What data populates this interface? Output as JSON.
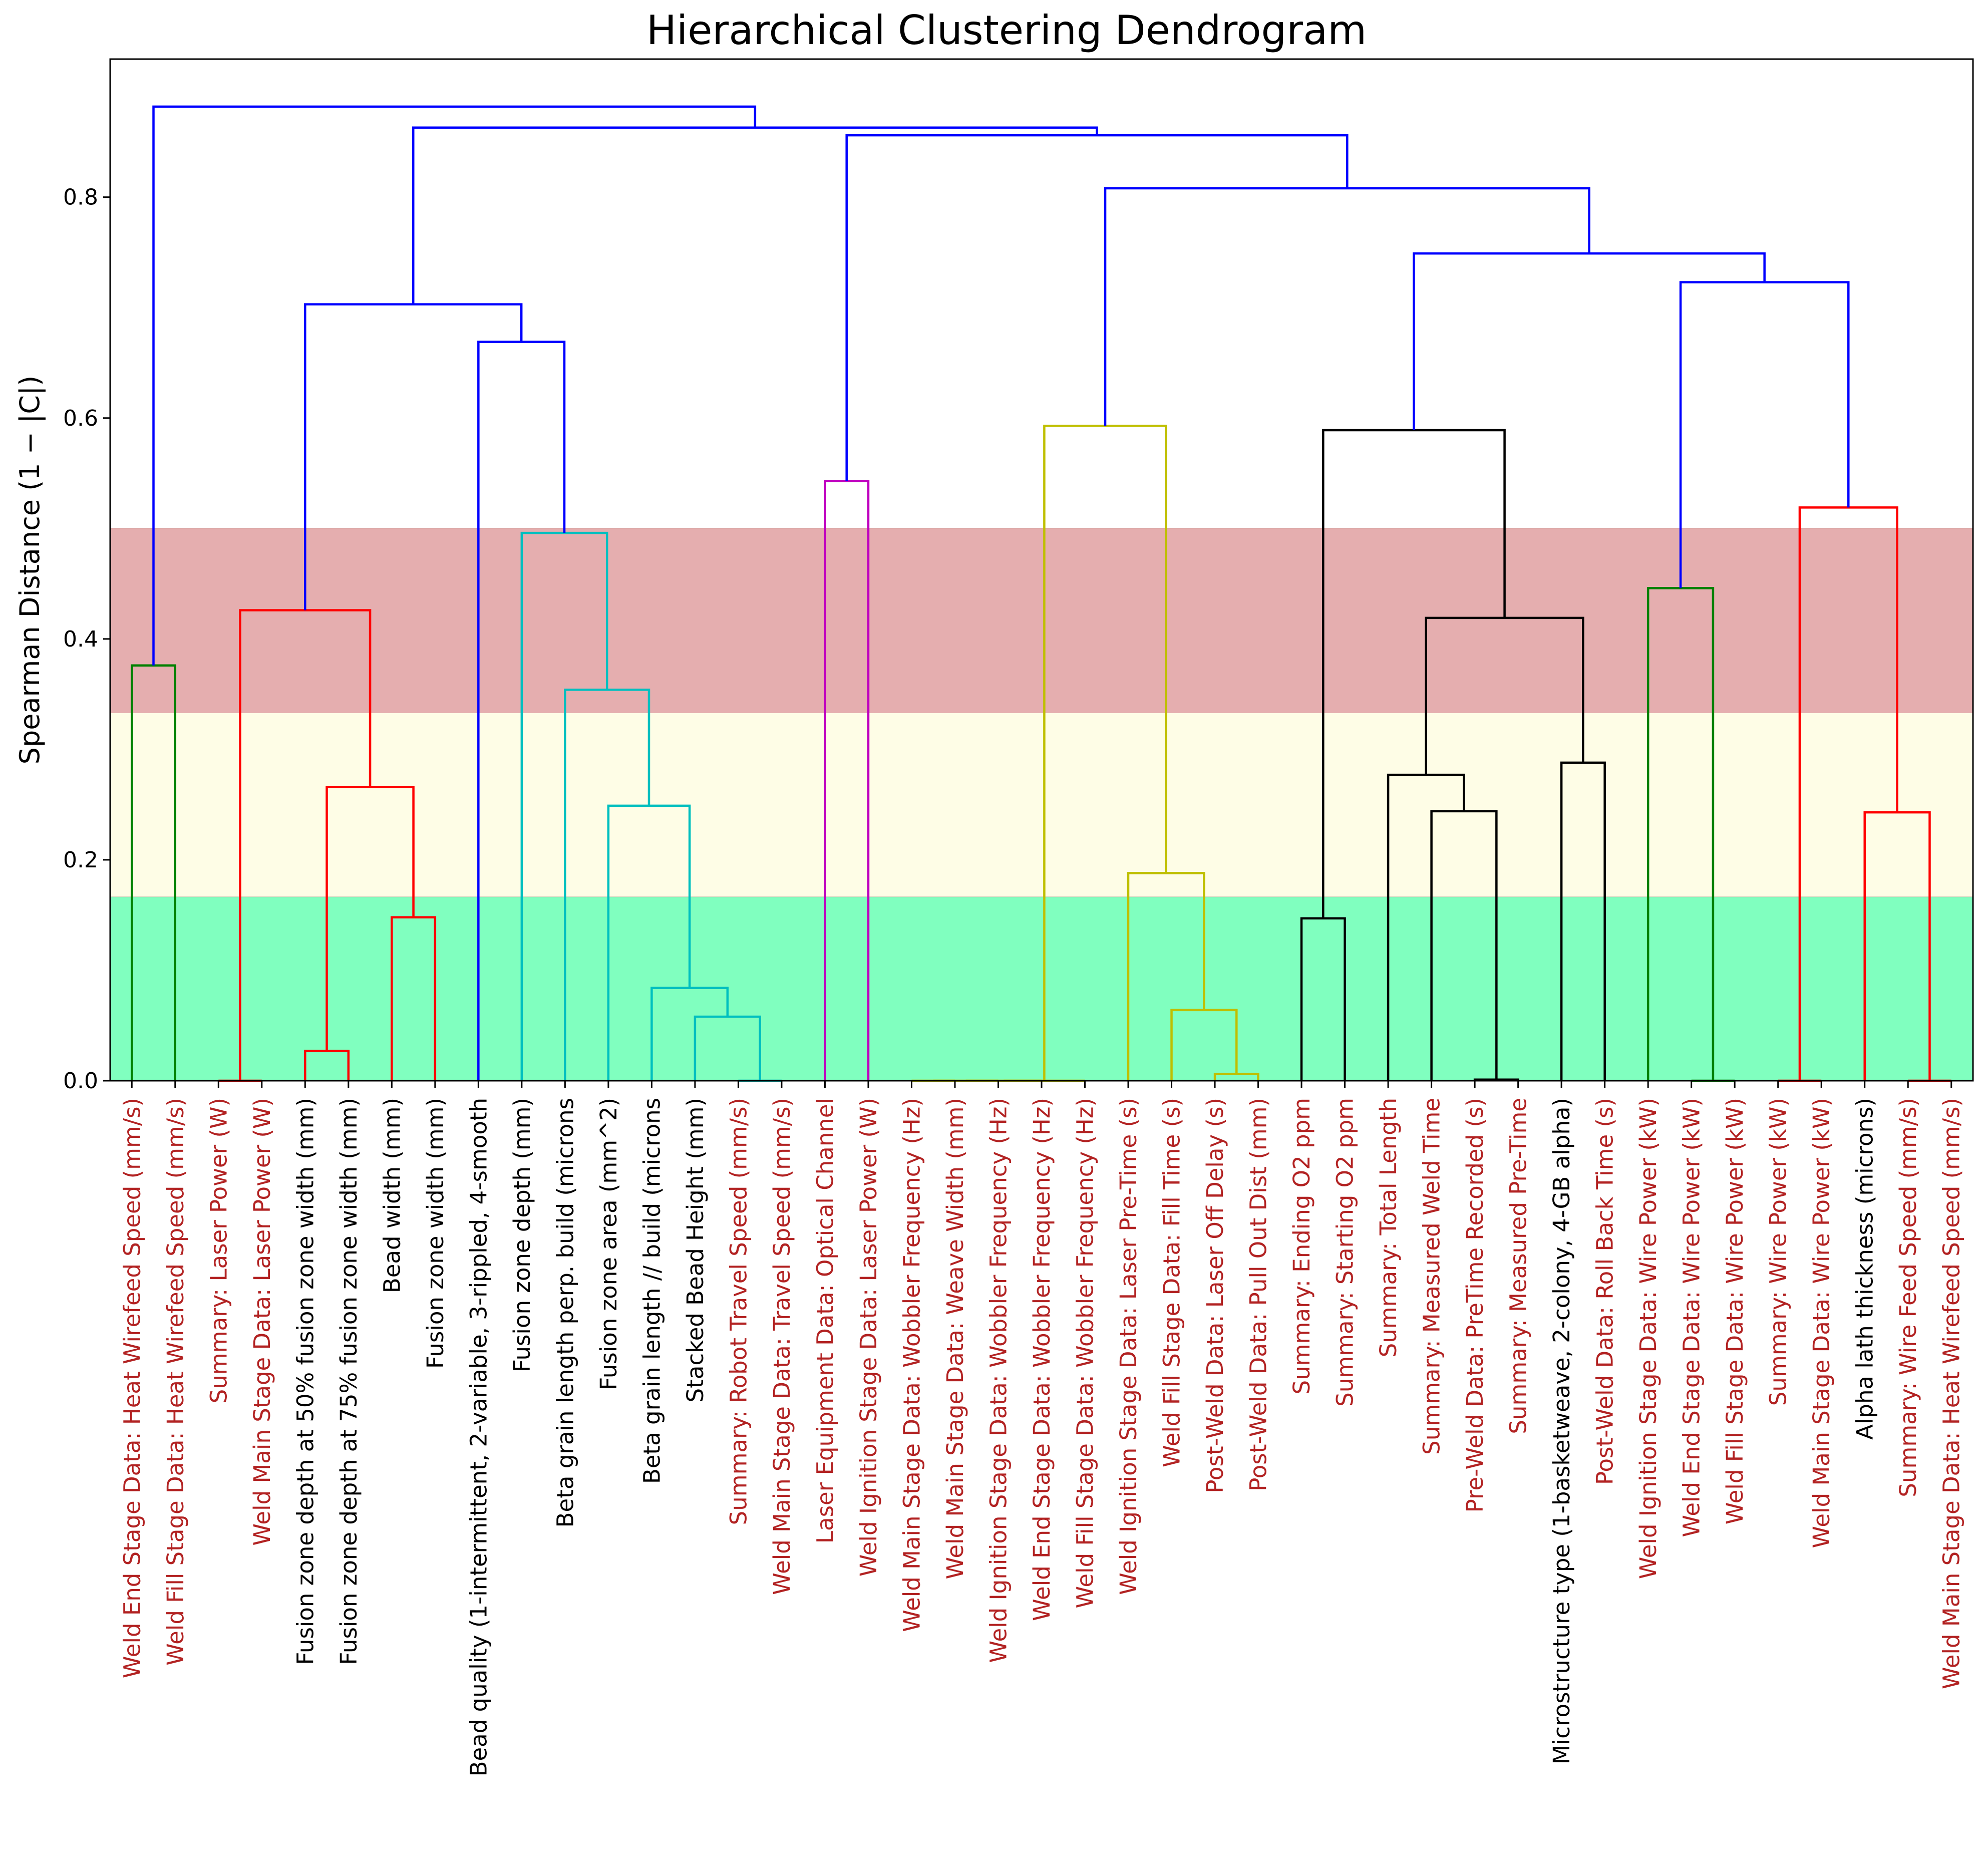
{
  "chart_data": {
    "type": "dendrogram",
    "title": "Hierarchical Clustering Dendrogram",
    "ylabel": "Spearman Distance (1 − |C|)",
    "ylim": [
      0,
      0.925
    ],
    "yticks": [
      0.0,
      0.2,
      0.4,
      0.6,
      0.8
    ],
    "ytick_labels": [
      "0.0",
      "0.2",
      "0.4",
      "0.6",
      "0.8"
    ],
    "grid": false,
    "bands": [
      {
        "from": 0.0,
        "to": 0.1667,
        "color": "#80ffbf"
      },
      {
        "from": 0.1667,
        "to": 0.3333,
        "color": "#fefde6"
      },
      {
        "from": 0.3333,
        "to": 0.5,
        "color": "#e5aeaf"
      }
    ],
    "label_colors": {
      "red": "#b22222",
      "black": "#000000"
    },
    "leaves": [
      {
        "label": "Weld End Stage Data: Heat Wirefeed Speed (mm/s)",
        "color": "red"
      },
      {
        "label": "Weld Fill Stage Data: Heat Wirefeed Speed (mm/s)",
        "color": "red"
      },
      {
        "label": "Summary: Laser Power (W)",
        "color": "red"
      },
      {
        "label": "Weld Main Stage Data: Laser Power (W)",
        "color": "red"
      },
      {
        "label": "Fusion zone depth at 50% fusion zone width (mm)",
        "color": "black"
      },
      {
        "label": "Fusion zone depth at 75% fusion zone width (mm)",
        "color": "black"
      },
      {
        "label": "Bead width (mm)",
        "color": "black"
      },
      {
        "label": "Fusion zone width (mm)",
        "color": "black"
      },
      {
        "label": "Bead quality (1-intermittent, 2-variable, 3-rippled, 4-smooth",
        "color": "black"
      },
      {
        "label": "Fusion zone depth (mm)",
        "color": "black"
      },
      {
        "label": "Beta grain length perp. build (microns",
        "color": "black"
      },
      {
        "label": "Fusion zone area (mm^2)",
        "color": "black"
      },
      {
        "label": "Beta grain length // build (microns",
        "color": "black"
      },
      {
        "label": "Stacked Bead Height (mm)",
        "color": "black"
      },
      {
        "label": "Summary: Robot Travel Speed (mm/s)",
        "color": "red"
      },
      {
        "label": "Weld Main Stage Data: Travel Speed (mm/s)",
        "color": "red"
      },
      {
        "label": "Laser Equipment Data: Optical Channel",
        "color": "red"
      },
      {
        "label": "Weld Ignition Stage Data: Laser Power (W)",
        "color": "red"
      },
      {
        "label": "Weld Main Stage Data: Wobbler Frequency (Hz)",
        "color": "red"
      },
      {
        "label": "Weld Main Stage Data: Weave Width (mm)",
        "color": "red"
      },
      {
        "label": "Weld Ignition Stage Data: Wobbler Frequency (Hz)",
        "color": "red"
      },
      {
        "label": "Weld End Stage Data: Wobbler Frequency (Hz)",
        "color": "red"
      },
      {
        "label": "Weld Fill Stage Data: Wobbler Frequency (Hz)",
        "color": "red"
      },
      {
        "label": "Weld Ignition Stage Data: Laser Pre-Time (s)",
        "color": "red"
      },
      {
        "label": "Weld Fill Stage Data: Fill Time (s)",
        "color": "red"
      },
      {
        "label": "Post-Weld Data: Laser Off Delay (s)",
        "color": "red"
      },
      {
        "label": "Post-Weld Data: Pull Out Dist (mm)",
        "color": "red"
      },
      {
        "label": "Summary: Ending O2 ppm",
        "color": "red"
      },
      {
        "label": "Summary: Starting O2 ppm",
        "color": "red"
      },
      {
        "label": "Summary: Total Length",
        "color": "red"
      },
      {
        "label": "Summary: Measured Weld Time",
        "color": "red"
      },
      {
        "label": "Pre-Weld Data: PreTime Recorded (s)",
        "color": "red"
      },
      {
        "label": "Summary: Measured Pre-Time",
        "color": "red"
      },
      {
        "label": "Microstructure type (1-basketweave, 2-colony, 4-GB alpha)",
        "color": "black"
      },
      {
        "label": "Post-Weld Data: Roll Back Time (s)",
        "color": "red"
      },
      {
        "label": "Weld Ignition Stage Data: Wire Power (kW)",
        "color": "red"
      },
      {
        "label": "Weld End Stage Data: Wire Power (kW)",
        "color": "red"
      },
      {
        "label": "Weld Fill Stage Data: Wire Power (kW)",
        "color": "red"
      },
      {
        "label": "Summary: Wire Power (kW)",
        "color": "red"
      },
      {
        "label": "Weld Main Stage Data: Wire Power (kW)",
        "color": "red"
      },
      {
        "label": "Alpha lath thickness (microns)",
        "color": "black"
      },
      {
        "label": "Summary: Wire Feed Speed (mm/s)",
        "color": "red"
      },
      {
        "label": "Weld Main Stage Data: Heat Wirefeed Speed (mm/s)",
        "color": "red"
      }
    ],
    "link_colors": {
      "blue": "#0000ff",
      "green": "#008000",
      "red": "#ff0000",
      "cyan": "#00bfbf",
      "magenta": "#bf00bf",
      "yellow": "#bfbf00",
      "black": "#000000"
    },
    "links": [
      {
        "xl": 0,
        "xr": 1,
        "yl": 0,
        "yr": 0,
        "h": 0.376,
        "color": "green"
      },
      {
        "xl": 2,
        "xr": 3,
        "yl": 0,
        "yr": 0,
        "h": 0.0,
        "color": "red"
      },
      {
        "xl": 4,
        "xr": 5,
        "yl": 0,
        "yr": 0,
        "h": 0.027,
        "color": "red"
      },
      {
        "xl": 6,
        "xr": 7,
        "yl": 0,
        "yr": 0,
        "h": 0.148,
        "color": "red"
      },
      {
        "xl": 4.5,
        "xr": 6.5,
        "yl": 0.027,
        "yr": 0.148,
        "h": 0.266,
        "color": "red"
      },
      {
        "xl": 2.5,
        "xr": 5.5,
        "yl": 0.0,
        "yr": 0.266,
        "h": 0.426,
        "color": "red"
      },
      {
        "xl": 14,
        "xr": 15,
        "yl": 0,
        "yr": 0,
        "h": 0.0,
        "color": "cyan"
      },
      {
        "xl": 13,
        "xr": 14.5,
        "yl": 0,
        "yr": 0.0,
        "h": 0.058,
        "color": "cyan"
      },
      {
        "xl": 12,
        "xr": 13.75,
        "yl": 0,
        "yr": 0.058,
        "h": 0.084,
        "color": "cyan"
      },
      {
        "xl": 11,
        "xr": 12.875,
        "yl": 0,
        "yr": 0.084,
        "h": 0.249,
        "color": "cyan"
      },
      {
        "xl": 10,
        "xr": 11.9375,
        "yl": 0,
        "yr": 0.249,
        "h": 0.354,
        "color": "cyan"
      },
      {
        "xl": 9,
        "xr": 10.96875,
        "yl": 0,
        "yr": 0.354,
        "h": 0.496,
        "color": "cyan"
      },
      {
        "xl": 8,
        "xr": 9.984375,
        "yl": 0,
        "yr": 0.496,
        "h": 0.669,
        "color": "blue"
      },
      {
        "xl": 4.0,
        "xr": 8.9921875,
        "yl": 0.426,
        "yr": 0.669,
        "h": 0.703,
        "color": "blue"
      },
      {
        "xl": 16,
        "xr": 17,
        "yl": 0,
        "yr": 0,
        "h": 0.543,
        "color": "magenta"
      },
      {
        "xl": 18,
        "xr": 19,
        "yl": 0,
        "yr": 0,
        "h": 0.0,
        "color": "yellow"
      },
      {
        "xl": 18.5,
        "xr": 20,
        "yl": 0.0,
        "yr": 0,
        "h": 0.0,
        "color": "yellow"
      },
      {
        "xl": 19.25,
        "xr": 21,
        "yl": 0.0,
        "yr": 0,
        "h": 0.0,
        "color": "yellow"
      },
      {
        "xl": 20.125,
        "xr": 22,
        "yl": 0.0,
        "yr": 0,
        "h": 0.0,
        "color": "yellow"
      },
      {
        "xl": 25,
        "xr": 26,
        "yl": 0,
        "yr": 0,
        "h": 0.006,
        "color": "yellow"
      },
      {
        "xl": 24,
        "xr": 25.5,
        "yl": 0,
        "yr": 0.006,
        "h": 0.064,
        "color": "yellow"
      },
      {
        "xl": 23,
        "xr": 24.75,
        "yl": 0,
        "yr": 0.064,
        "h": 0.188,
        "color": "yellow"
      },
      {
        "xl": 21.0625,
        "xr": 23.875,
        "yl": 0.0,
        "yr": 0.188,
        "h": 0.593,
        "color": "yellow"
      },
      {
        "xl": 27,
        "xr": 28,
        "yl": 0,
        "yr": 0,
        "h": 0.147,
        "color": "black"
      },
      {
        "xl": 31,
        "xr": 32,
        "yl": 0,
        "yr": 0,
        "h": 0.001,
        "color": "black"
      },
      {
        "xl": 30,
        "xr": 31.5,
        "yl": 0,
        "yr": 0.001,
        "h": 0.244,
        "color": "black"
      },
      {
        "xl": 29,
        "xr": 30.75,
        "yl": 0,
        "yr": 0.244,
        "h": 0.277,
        "color": "black"
      },
      {
        "xl": 33,
        "xr": 34,
        "yl": 0,
        "yr": 0,
        "h": 0.288,
        "color": "black"
      },
      {
        "xl": 29.875,
        "xr": 33.5,
        "yl": 0.277,
        "yr": 0.288,
        "h": 0.419,
        "color": "black"
      },
      {
        "xl": 27.5,
        "xr": 31.6875,
        "yl": 0.147,
        "yr": 0.419,
        "h": 0.589,
        "color": "black"
      },
      {
        "xl": 36,
        "xr": 37,
        "yl": 0,
        "yr": 0,
        "h": 0.0,
        "color": "green"
      },
      {
        "xl": 35,
        "xr": 36.5,
        "yl": 0,
        "yr": 0.0,
        "h": 0.446,
        "color": "green"
      },
      {
        "xl": 38,
        "xr": 39,
        "yl": 0,
        "yr": 0,
        "h": 0.0,
        "color": "red"
      },
      {
        "xl": 41,
        "xr": 42,
        "yl": 0,
        "yr": 0,
        "h": 0.0,
        "color": "red"
      },
      {
        "xl": 40,
        "xr": 41.5,
        "yl": 0,
        "yr": 0.0,
        "h": 0.243,
        "color": "red"
      },
      {
        "xl": 38.5,
        "xr": 40.75,
        "yl": 0.0,
        "yr": 0.243,
        "h": 0.519,
        "color": "red"
      },
      {
        "xl": 35.75,
        "xr": 39.625,
        "yl": 0.446,
        "yr": 0.519,
        "h": 0.723,
        "color": "blue"
      },
      {
        "xl": 29.59375,
        "xr": 37.6875,
        "yl": 0.589,
        "yr": 0.723,
        "h": 0.749,
        "color": "blue"
      },
      {
        "xl": 22.46875,
        "xr": 33.640625,
        "yl": 0.593,
        "yr": 0.749,
        "h": 0.808,
        "color": "blue"
      },
      {
        "xl": 16.5,
        "xr": 28.0546875,
        "yl": 0.543,
        "yr": 0.808,
        "h": 0.856,
        "color": "blue"
      },
      {
        "xl": 6.49609375,
        "xr": 22.27734375,
        "yl": 0.703,
        "yr": 0.856,
        "h": 0.863,
        "color": "blue"
      },
      {
        "xl": 0.5,
        "xr": 14.38671875,
        "yl": 0.376,
        "yr": 0.863,
        "h": 0.882,
        "color": "blue"
      }
    ]
  }
}
